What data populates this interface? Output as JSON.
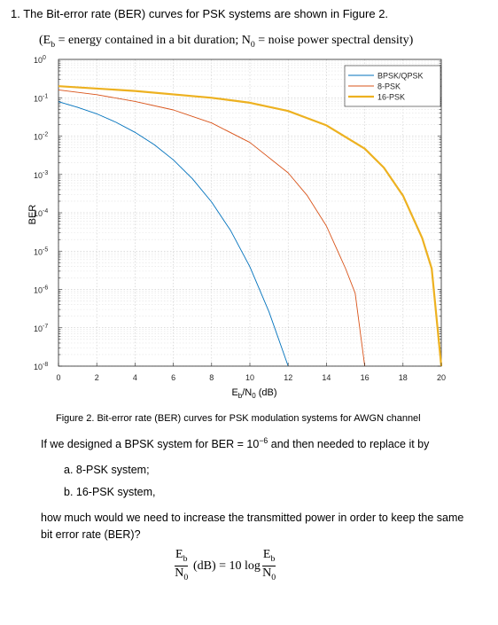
{
  "question": {
    "number": "1.",
    "text": "The Bit-error rate (BER) curves for PSK systems are shown in Figure 2."
  },
  "definitions": {
    "eb_sym": "E",
    "eb_sub": "b",
    "eb_def": "= energy contained in a bit duration;",
    "n0_sym": "N",
    "n0_sub": "0",
    "n0_def": "= noise power spectral density)",
    "open": "("
  },
  "chart_data": {
    "type": "line",
    "xlabel_main": "E",
    "xlabel_sub1": "b",
    "xlabel_mid": "/N",
    "xlabel_sub2": "0",
    "xlabel_unit": " (dB)",
    "ylabel": "BER",
    "xlim": [
      0,
      20
    ],
    "ylim_log10": [
      -8,
      0
    ],
    "y_scale": "log",
    "grid": "dotted",
    "legend_position": "top-right",
    "x_ticks": [
      "0",
      "2",
      "4",
      "6",
      "8",
      "10",
      "12",
      "14",
      "16",
      "18",
      "20"
    ],
    "y_ticks": [
      {
        "base": "10",
        "exp": "0"
      },
      {
        "base": "10",
        "exp": "-1"
      },
      {
        "base": "10",
        "exp": "-2"
      },
      {
        "base": "10",
        "exp": "-3"
      },
      {
        "base": "10",
        "exp": "-4"
      },
      {
        "base": "10",
        "exp": "-5"
      },
      {
        "base": "10",
        "exp": "-6"
      },
      {
        "base": "10",
        "exp": "-7"
      },
      {
        "base": "10",
        "exp": "-8"
      }
    ],
    "series": [
      {
        "name": "BPSK/QPSK",
        "color": "#0072BD",
        "points": [
          [
            0,
            0.079
          ],
          [
            1,
            0.056
          ],
          [
            2,
            0.038
          ],
          [
            3,
            0.023
          ],
          [
            4,
            0.0125
          ],
          [
            5,
            0.006
          ],
          [
            6,
            0.0024
          ],
          [
            7,
            0.00077
          ],
          [
            8,
            0.00019
          ],
          [
            9,
            3.4e-05
          ],
          [
            10,
            3.9e-06
          ],
          [
            11,
            2.6e-07
          ],
          [
            12,
            1e-08
          ]
        ]
      },
      {
        "name": "8-PSK",
        "color": "#D95319",
        "points": [
          [
            0,
            0.16
          ],
          [
            2,
            0.12
          ],
          [
            4,
            0.08
          ],
          [
            6,
            0.048
          ],
          [
            8,
            0.022
          ],
          [
            10,
            0.0068
          ],
          [
            12,
            0.0011
          ],
          [
            13,
            0.00028
          ],
          [
            14,
            4.5e-05
          ],
          [
            15,
            3.5e-06
          ],
          [
            15.5,
            8e-07
          ],
          [
            16,
            1e-08
          ]
        ]
      },
      {
        "name": "16-PSK",
        "color": "#EDB120",
        "points": [
          [
            0,
            0.2
          ],
          [
            4,
            0.15
          ],
          [
            8,
            0.1
          ],
          [
            10,
            0.074
          ],
          [
            12,
            0.045
          ],
          [
            14,
            0.019
          ],
          [
            16,
            0.0047
          ],
          [
            17,
            0.0015
          ],
          [
            18,
            0.00028
          ],
          [
            19,
            2.2e-05
          ],
          [
            19.5,
            3.5e-06
          ],
          [
            20,
            1e-08
          ]
        ]
      }
    ]
  },
  "caption": "Figure 2. Bit-error rate (BER) curves for PSK modulation systems for AWGN channel",
  "prompt_text": "If we designed a BPSK system for BER = 10",
  "prompt_exp": "−6",
  "prompt_tail": " and then needed to replace it by",
  "items": {
    "a": "a.   8-PSK system;",
    "b": "b.   16-PSK system,"
  },
  "followup": "how much would we need to increase the transmitted power in order to keep the same bit error rate (BER)?",
  "formula": {
    "num_sym": "E",
    "num_sub": "b",
    "den_sym": "N",
    "den_sub": "0",
    "middle": "(dB) = 10 log"
  }
}
